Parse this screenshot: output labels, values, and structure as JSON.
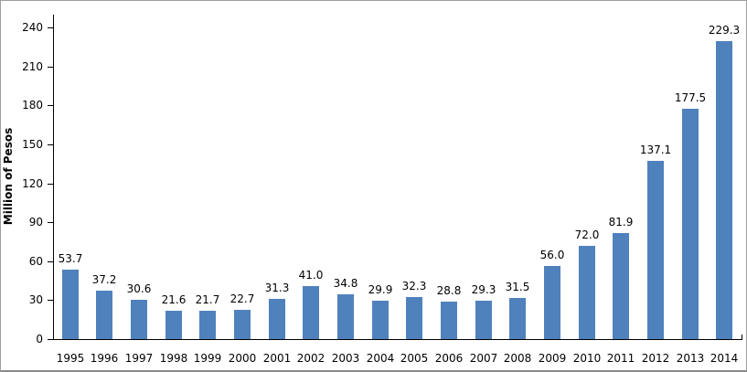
{
  "chart_data": {
    "type": "bar",
    "title": "",
    "xlabel": "",
    "ylabel": "Million of Pesos",
    "categories": [
      "1995",
      "1996",
      "1997",
      "1998",
      "1999",
      "2000",
      "2001",
      "2002",
      "2003",
      "2004",
      "2005",
      "2006",
      "2007",
      "2008",
      "2009",
      "2010",
      "2011",
      "2012",
      "2013",
      "2014"
    ],
    "values": [
      53.7,
      37.2,
      30.6,
      21.6,
      21.7,
      22.7,
      31.3,
      41.0,
      34.8,
      29.9,
      32.3,
      28.8,
      29.3,
      31.5,
      56.0,
      72.0,
      81.9,
      137.1,
      177.5,
      229.3
    ],
    "data_labels": [
      "53.7",
      "37.2",
      "30.6",
      "21.6",
      "21.7",
      "22.7",
      "31.3",
      "41.0",
      "34.8",
      "29.9",
      "32.3",
      "28.8",
      "29.3",
      "31.5",
      "56.0",
      "72.0",
      "81.9",
      "137.1",
      "177.5",
      "229.3"
    ],
    "yticks": [
      0,
      30,
      60,
      90,
      120,
      150,
      180,
      210,
      240
    ],
    "ylim": [
      0,
      250
    ],
    "grid": false,
    "legend_position": "none",
    "bar_color": "#4F81BD",
    "axis_color": "#000000",
    "text_color": "#000000",
    "frame_border_color": "#9e9e9e"
  }
}
